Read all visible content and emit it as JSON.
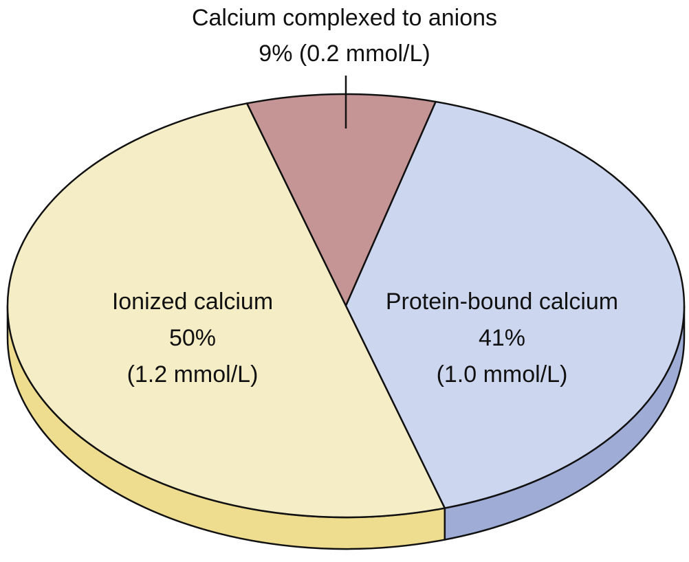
{
  "chart_data": {
    "type": "pie",
    "categories": [
      "Ionized calcium",
      "Calcium complexed to anions",
      "Protein-bound calcium"
    ],
    "values": [
      50,
      9,
      41
    ],
    "value_labels": [
      "50%",
      "9%",
      "41%"
    ],
    "concentrations": [
      1.2,
      0.2,
      1.0
    ],
    "concentration_labels": [
      "(1.2 mmol/L)",
      "(0.2 mmol/L)",
      "(1.0 mmol/L)"
    ],
    "colors": [
      "#f5edc6",
      "#c49594",
      "#cdd6ef"
    ],
    "side_colors": [
      "#eedc8f",
      "#a87a79",
      "#9eacd6"
    ]
  }
}
